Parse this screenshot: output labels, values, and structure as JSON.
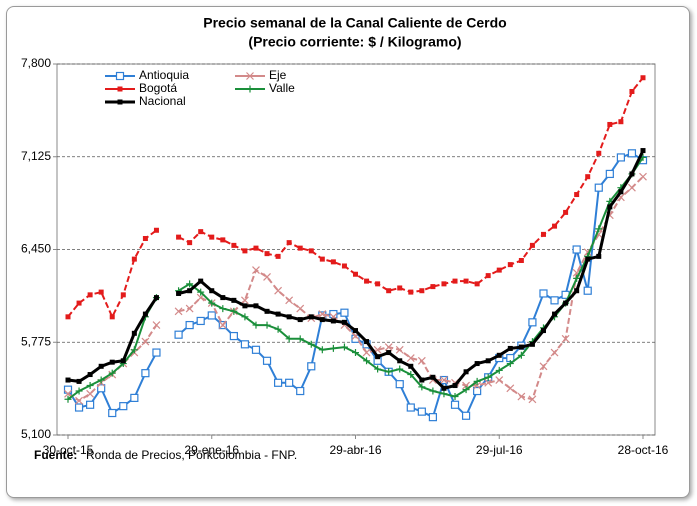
{
  "chart_data": {
    "type": "line",
    "title": "Precio semanal de la Canal Caliente de Cerdo",
    "subtitle": "(Precio corriente: $ / Kilogramo)",
    "source_label": "Fuente:",
    "source_text": "Ronda de Precios, Porkcolombia  - FNP.",
    "categories": [
      "30-oct-15",
      null,
      null,
      null,
      null,
      null,
      null,
      null,
      null,
      null,
      null,
      null,
      null,
      "29-ene-16",
      null,
      null,
      null,
      null,
      null,
      null,
      null,
      null,
      null,
      null,
      null,
      null,
      "29-abr-16",
      null,
      null,
      null,
      null,
      null,
      null,
      null,
      null,
      null,
      null,
      null,
      null,
      "29-jul-16",
      null,
      null,
      null,
      null,
      null,
      null,
      null,
      null,
      null,
      null,
      null,
      null,
      "28-oct-16"
    ],
    "ylim": [
      5100,
      7800
    ],
    "yticks": [
      {
        "value": 5100,
        "label": "5,100"
      },
      {
        "value": 5775,
        "label": "5,775"
      },
      {
        "value": 6450,
        "label": "6,450"
      },
      {
        "value": 7125,
        "label": "7,125"
      },
      {
        "value": 7800,
        "label": "7,800"
      }
    ],
    "grid": true,
    "series": [
      {
        "name": "Antioquia",
        "color": "#2f7fd6",
        "marker": "square-open",
        "values": [
          5430,
          5300,
          5320,
          5440,
          5260,
          5310,
          5370,
          5550,
          5700,
          null,
          5830,
          5900,
          5930,
          5970,
          5900,
          5820,
          5760,
          5720,
          5640,
          5480,
          5480,
          5420,
          5600,
          5970,
          5980,
          5990,
          5800,
          5760,
          5640,
          5560,
          5470,
          5300,
          5270,
          5230,
          5500,
          5320,
          5240,
          5420,
          5520,
          5660,
          5660,
          5750,
          5920,
          6130,
          6080,
          6120,
          6450,
          6150,
          6900,
          7000,
          7120,
          7150,
          7100
        ]
      },
      {
        "name": "Eje",
        "color": "#d38a8a",
        "marker": "x",
        "values": [
          5400,
          5350,
          5400,
          5480,
          5540,
          5620,
          5700,
          5780,
          5900,
          null,
          6000,
          6020,
          6100,
          6060,
          5900,
          6000,
          6080,
          6300,
          6250,
          6150,
          6080,
          6020,
          5950,
          5980,
          5960,
          5900,
          5820,
          5700,
          5720,
          5740,
          5720,
          5660,
          5640,
          5500,
          5500,
          5480,
          5460,
          5460,
          5480,
          5500,
          5440,
          5380,
          5360,
          5600,
          5700,
          5800,
          6280,
          6430,
          6560,
          6700,
          6830,
          6900,
          6980
        ]
      },
      {
        "name": "Bogotá",
        "color": "#e31b1b",
        "marker": "square",
        "values": [
          5960,
          6060,
          6120,
          6140,
          5960,
          6120,
          6380,
          6530,
          6590,
          null,
          6540,
          6500,
          6580,
          6540,
          6520,
          6480,
          6440,
          6460,
          6420,
          6400,
          6500,
          6460,
          6440,
          6380,
          6360,
          6330,
          6270,
          6220,
          6200,
          6150,
          6170,
          6140,
          6150,
          6180,
          6200,
          6220,
          6220,
          6200,
          6260,
          6300,
          6340,
          6370,
          6480,
          6560,
          6620,
          6720,
          6850,
          6980,
          7150,
          7360,
          7380,
          7600,
          7700
        ]
      },
      {
        "name": "Valle",
        "color": "#1a8f3a",
        "marker": "plus",
        "values": [
          5360,
          5420,
          5460,
          5500,
          5550,
          5620,
          5720,
          5960,
          6100,
          null,
          6150,
          6200,
          6140,
          6060,
          6020,
          6000,
          5960,
          5900,
          5900,
          5870,
          5800,
          5800,
          5760,
          5720,
          5730,
          5740,
          5700,
          5640,
          5580,
          5560,
          5580,
          5540,
          5450,
          5420,
          5400,
          5380,
          5430,
          5490,
          5520,
          5570,
          5620,
          5680,
          5780,
          5880,
          5960,
          6060,
          6240,
          6400,
          6600,
          6800,
          6900,
          7000,
          7120
        ]
      },
      {
        "name": "Nacional",
        "color": "#000000",
        "marker": "square",
        "values": [
          5500,
          5490,
          5540,
          5600,
          5630,
          5640,
          5840,
          5980,
          6100,
          null,
          6130,
          6150,
          6220,
          6150,
          6100,
          6080,
          6040,
          6040,
          6000,
          5980,
          5960,
          5940,
          5960,
          5940,
          5930,
          5920,
          5860,
          5780,
          5670,
          5700,
          5640,
          5600,
          5500,
          5520,
          5440,
          5460,
          5560,
          5620,
          5640,
          5680,
          5730,
          5740,
          5760,
          5860,
          5980,
          6060,
          6150,
          6380,
          6400,
          6760,
          6870,
          7000,
          7170
        ]
      }
    ]
  }
}
